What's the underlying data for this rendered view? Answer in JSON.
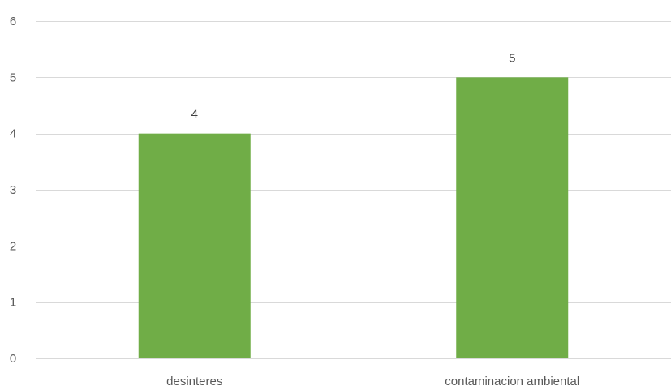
{
  "chart_data": {
    "type": "bar",
    "categories": [
      "desinteres",
      "contaminacion ambiental"
    ],
    "values": [
      4,
      5
    ],
    "data_labels": [
      "4",
      "5"
    ],
    "y_ticks": [
      0,
      1,
      2,
      3,
      4,
      5,
      6
    ],
    "ylim": [
      0,
      6
    ],
    "title": "",
    "xlabel": "",
    "ylabel": "",
    "grid": true,
    "legend": "none",
    "colors": {
      "bar": "#70ad47",
      "grid": "#d9d9d9",
      "tick_text": "#595959"
    }
  }
}
